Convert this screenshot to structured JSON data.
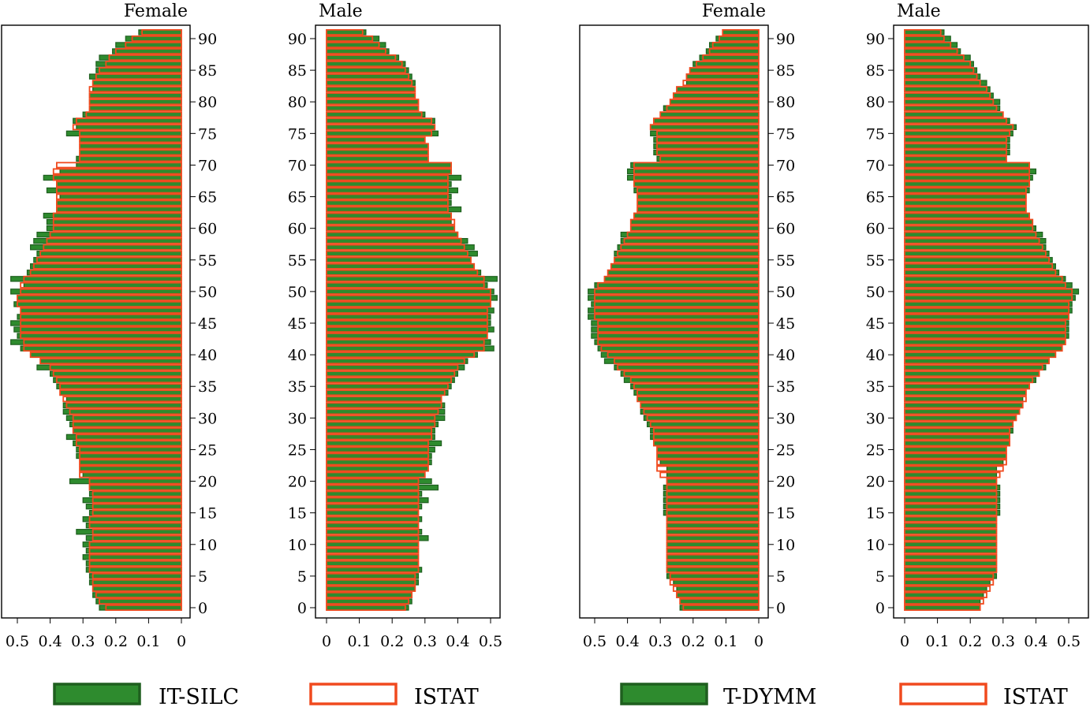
{
  "colors": {
    "survey": "#2e8b2e",
    "survey_edge": "#1f5f1f",
    "istat": "#f04a1e"
  },
  "legend": [
    {
      "label": "IT-SILC",
      "style": "filled"
    },
    {
      "label": "ISTAT",
      "style": "outline"
    },
    {
      "label": "T-DYMM",
      "style": "filled"
    },
    {
      "label": "ISTAT",
      "style": "outline"
    }
  ],
  "chart_data": [
    {
      "type": "bar",
      "orientation": "horizontal",
      "title": "Female",
      "x_direction": "reversed",
      "xlim": [
        0,
        0.55
      ],
      "ylim": [
        0,
        91
      ],
      "x_ticks": [
        0.5,
        0.4,
        0.3,
        0.2,
        0.1,
        0
      ],
      "y_ticks": [
        0,
        5,
        10,
        15,
        20,
        25,
        30,
        35,
        40,
        45,
        50,
        55,
        60,
        65,
        70,
        75,
        80,
        85,
        90
      ],
      "y_axis_side": "right",
      "series": [
        {
          "name": "IT-SILC",
          "style": "filled",
          "values": [
            0.25,
            0.26,
            0.27,
            0.27,
            0.28,
            0.28,
            0.29,
            0.29,
            0.3,
            0.29,
            0.3,
            0.29,
            0.32,
            0.29,
            0.3,
            0.28,
            0.29,
            0.3,
            0.28,
            0.28,
            0.34,
            0.3,
            0.31,
            0.31,
            0.32,
            0.32,
            0.33,
            0.35,
            0.33,
            0.34,
            0.35,
            0.36,
            0.36,
            0.35,
            0.37,
            0.38,
            0.39,
            0.4,
            0.44,
            0.43,
            0.46,
            0.49,
            0.52,
            0.5,
            0.51,
            0.52,
            0.5,
            0.49,
            0.51,
            0.5,
            0.52,
            0.48,
            0.52,
            0.47,
            0.46,
            0.45,
            0.44,
            0.46,
            0.45,
            0.44,
            0.41,
            0.41,
            0.42,
            0.38,
            0.38,
            0.37,
            0.41,
            0.38,
            0.42,
            0.37,
            0.32,
            0.32,
            0.31,
            0.31,
            0.31,
            0.35,
            0.32,
            0.33,
            0.3,
            0.28,
            0.28,
            0.28,
            0.27,
            0.27,
            0.28,
            0.26,
            0.26,
            0.25,
            0.21,
            0.2,
            0.17,
            0.13
          ]
        },
        {
          "name": "ISTAT",
          "style": "outline",
          "values": [
            0.23,
            0.25,
            0.26,
            0.27,
            0.27,
            0.27,
            0.28,
            0.28,
            0.28,
            0.28,
            0.28,
            0.27,
            0.27,
            0.28,
            0.28,
            0.27,
            0.27,
            0.27,
            0.27,
            0.28,
            0.28,
            0.31,
            0.31,
            0.31,
            0.31,
            0.31,
            0.32,
            0.32,
            0.33,
            0.33,
            0.33,
            0.34,
            0.35,
            0.36,
            0.37,
            0.37,
            0.38,
            0.39,
            0.4,
            0.43,
            0.46,
            0.48,
            0.48,
            0.49,
            0.49,
            0.49,
            0.49,
            0.49,
            0.5,
            0.5,
            0.49,
            0.49,
            0.48,
            0.46,
            0.45,
            0.44,
            0.43,
            0.42,
            0.41,
            0.4,
            0.39,
            0.39,
            0.39,
            0.38,
            0.38,
            0.38,
            0.38,
            0.38,
            0.39,
            0.39,
            0.38,
            0.31,
            0.31,
            0.31,
            0.31,
            0.31,
            0.33,
            0.32,
            0.29,
            0.28,
            0.28,
            0.28,
            0.28,
            0.27,
            0.26,
            0.25,
            0.23,
            0.22,
            0.2,
            0.17,
            0.15,
            0.12
          ]
        }
      ]
    },
    {
      "type": "bar",
      "orientation": "horizontal",
      "title": "Male",
      "x_direction": "normal",
      "xlim": [
        0,
        0.55
      ],
      "ylim": [
        0,
        91
      ],
      "x_ticks": [
        0,
        0.1,
        0.2,
        0.3,
        0.4,
        0.5
      ],
      "y_ticks": [
        0,
        5,
        10,
        15,
        20,
        25,
        30,
        35,
        40,
        45,
        50,
        55,
        60,
        65,
        70,
        75,
        80,
        85,
        90
      ],
      "y_axis_side": "left",
      "series": [
        {
          "name": "IT-SILC",
          "style": "filled",
          "values": [
            0.25,
            0.26,
            0.26,
            0.27,
            0.28,
            0.28,
            0.29,
            0.28,
            0.28,
            0.28,
            0.28,
            0.31,
            0.29,
            0.28,
            0.29,
            0.28,
            0.29,
            0.31,
            0.29,
            0.34,
            0.32,
            0.3,
            0.31,
            0.32,
            0.32,
            0.33,
            0.35,
            0.33,
            0.33,
            0.34,
            0.36,
            0.36,
            0.36,
            0.35,
            0.37,
            0.38,
            0.39,
            0.4,
            0.42,
            0.43,
            0.46,
            0.51,
            0.5,
            0.49,
            0.51,
            0.5,
            0.5,
            0.51,
            0.5,
            0.52,
            0.51,
            0.49,
            0.52,
            0.47,
            0.45,
            0.44,
            0.46,
            0.45,
            0.43,
            0.4,
            0.39,
            0.38,
            0.38,
            0.41,
            0.38,
            0.38,
            0.4,
            0.38,
            0.41,
            0.38,
            0.38,
            0.31,
            0.31,
            0.31,
            0.3,
            0.34,
            0.33,
            0.33,
            0.3,
            0.28,
            0.28,
            0.27,
            0.27,
            0.27,
            0.26,
            0.25,
            0.24,
            0.22,
            0.19,
            0.18,
            0.16,
            0.12
          ]
        },
        {
          "name": "ISTAT",
          "style": "outline",
          "values": [
            0.24,
            0.25,
            0.26,
            0.27,
            0.27,
            0.27,
            0.28,
            0.28,
            0.28,
            0.28,
            0.28,
            0.28,
            0.28,
            0.28,
            0.28,
            0.28,
            0.28,
            0.28,
            0.28,
            0.28,
            0.28,
            0.3,
            0.31,
            0.31,
            0.31,
            0.31,
            0.31,
            0.32,
            0.32,
            0.33,
            0.33,
            0.34,
            0.35,
            0.35,
            0.36,
            0.37,
            0.38,
            0.39,
            0.4,
            0.42,
            0.45,
            0.48,
            0.48,
            0.49,
            0.49,
            0.49,
            0.49,
            0.49,
            0.5,
            0.5,
            0.5,
            0.48,
            0.48,
            0.46,
            0.45,
            0.44,
            0.43,
            0.42,
            0.41,
            0.4,
            0.39,
            0.39,
            0.38,
            0.37,
            0.37,
            0.37,
            0.37,
            0.37,
            0.37,
            0.38,
            0.38,
            0.31,
            0.31,
            0.31,
            0.3,
            0.32,
            0.33,
            0.32,
            0.29,
            0.28,
            0.28,
            0.27,
            0.27,
            0.26,
            0.25,
            0.24,
            0.23,
            0.21,
            0.18,
            0.16,
            0.14,
            0.11
          ]
        }
      ]
    },
    {
      "type": "bar",
      "orientation": "horizontal",
      "title": "Female",
      "x_direction": "reversed",
      "xlim": [
        0,
        0.55
      ],
      "ylim": [
        0,
        91
      ],
      "x_ticks": [
        0.5,
        0.4,
        0.3,
        0.2,
        0.1,
        0
      ],
      "y_ticks": [
        0,
        5,
        10,
        15,
        20,
        25,
        30,
        35,
        40,
        45,
        50,
        55,
        60,
        65,
        70,
        75,
        80,
        85,
        90
      ],
      "y_axis_side": "right",
      "series": [
        {
          "name": "T-DYMM",
          "style": "filled",
          "values": [
            0.24,
            0.24,
            0.25,
            0.25,
            0.26,
            0.28,
            0.28,
            0.28,
            0.28,
            0.28,
            0.28,
            0.28,
            0.28,
            0.28,
            0.28,
            0.29,
            0.29,
            0.29,
            0.29,
            0.29,
            0.28,
            0.28,
            0.28,
            0.3,
            0.31,
            0.31,
            0.32,
            0.33,
            0.33,
            0.34,
            0.35,
            0.36,
            0.36,
            0.37,
            0.38,
            0.39,
            0.41,
            0.42,
            0.44,
            0.47,
            0.48,
            0.49,
            0.5,
            0.51,
            0.51,
            0.51,
            0.52,
            0.52,
            0.51,
            0.52,
            0.52,
            0.5,
            0.47,
            0.46,
            0.45,
            0.44,
            0.44,
            0.43,
            0.42,
            0.42,
            0.39,
            0.39,
            0.38,
            0.37,
            0.37,
            0.37,
            0.38,
            0.38,
            0.4,
            0.4,
            0.39,
            0.31,
            0.32,
            0.32,
            0.32,
            0.33,
            0.33,
            0.32,
            0.3,
            0.29,
            0.27,
            0.26,
            0.25,
            0.22,
            0.22,
            0.21,
            0.2,
            0.18,
            0.16,
            0.15,
            0.13,
            0.11
          ]
        },
        {
          "name": "ISTAT",
          "style": "outline",
          "values": [
            0.23,
            0.24,
            0.25,
            0.26,
            0.27,
            0.27,
            0.28,
            0.28,
            0.28,
            0.28,
            0.28,
            0.28,
            0.28,
            0.28,
            0.28,
            0.28,
            0.28,
            0.28,
            0.28,
            0.28,
            0.28,
            0.3,
            0.31,
            0.31,
            0.31,
            0.31,
            0.32,
            0.32,
            0.32,
            0.33,
            0.34,
            0.35,
            0.36,
            0.37,
            0.37,
            0.38,
            0.39,
            0.41,
            0.43,
            0.44,
            0.46,
            0.48,
            0.49,
            0.49,
            0.49,
            0.49,
            0.5,
            0.5,
            0.5,
            0.5,
            0.5,
            0.49,
            0.47,
            0.46,
            0.45,
            0.44,
            0.43,
            0.42,
            0.41,
            0.4,
            0.39,
            0.39,
            0.38,
            0.37,
            0.37,
            0.37,
            0.37,
            0.38,
            0.38,
            0.38,
            0.38,
            0.3,
            0.31,
            0.31,
            0.31,
            0.31,
            0.33,
            0.32,
            0.3,
            0.28,
            0.27,
            0.26,
            0.25,
            0.23,
            0.22,
            0.21,
            0.19,
            0.17,
            0.15,
            0.14,
            0.12,
            0.11
          ]
        }
      ]
    },
    {
      "type": "bar",
      "orientation": "horizontal",
      "title": "Male",
      "x_direction": "normal",
      "xlim": [
        0,
        0.55
      ],
      "ylim": [
        0,
        91
      ],
      "x_ticks": [
        0,
        0.1,
        0.2,
        0.3,
        0.4,
        0.5
      ],
      "y_ticks": [
        0,
        5,
        10,
        15,
        20,
        25,
        30,
        35,
        40,
        45,
        50,
        55,
        60,
        65,
        70,
        75,
        80,
        85,
        90
      ],
      "y_axis_side": "left",
      "series": [
        {
          "name": "T-DYMM",
          "style": "filled",
          "values": [
            0.23,
            0.23,
            0.24,
            0.25,
            0.26,
            0.28,
            0.28,
            0.28,
            0.28,
            0.28,
            0.28,
            0.28,
            0.28,
            0.28,
            0.28,
            0.29,
            0.29,
            0.29,
            0.29,
            0.29,
            0.28,
            0.28,
            0.28,
            0.3,
            0.31,
            0.31,
            0.32,
            0.32,
            0.33,
            0.33,
            0.34,
            0.35,
            0.36,
            0.36,
            0.37,
            0.38,
            0.4,
            0.41,
            0.43,
            0.44,
            0.46,
            0.48,
            0.49,
            0.5,
            0.5,
            0.5,
            0.5,
            0.51,
            0.51,
            0.52,
            0.53,
            0.51,
            0.49,
            0.47,
            0.46,
            0.45,
            0.44,
            0.43,
            0.43,
            0.42,
            0.4,
            0.39,
            0.38,
            0.37,
            0.37,
            0.37,
            0.38,
            0.38,
            0.39,
            0.4,
            0.38,
            0.31,
            0.32,
            0.32,
            0.32,
            0.33,
            0.34,
            0.32,
            0.3,
            0.29,
            0.29,
            0.27,
            0.26,
            0.25,
            0.23,
            0.22,
            0.21,
            0.2,
            0.17,
            0.16,
            0.14,
            0.12
          ]
        },
        {
          "name": "ISTAT",
          "style": "outline",
          "values": [
            0.23,
            0.24,
            0.25,
            0.26,
            0.27,
            0.27,
            0.28,
            0.28,
            0.28,
            0.28,
            0.28,
            0.28,
            0.28,
            0.28,
            0.28,
            0.28,
            0.28,
            0.28,
            0.28,
            0.28,
            0.28,
            0.29,
            0.3,
            0.31,
            0.31,
            0.31,
            0.32,
            0.32,
            0.32,
            0.33,
            0.34,
            0.35,
            0.36,
            0.37,
            0.37,
            0.38,
            0.39,
            0.41,
            0.42,
            0.44,
            0.46,
            0.48,
            0.49,
            0.49,
            0.49,
            0.49,
            0.5,
            0.5,
            0.5,
            0.51,
            0.51,
            0.49,
            0.48,
            0.46,
            0.45,
            0.44,
            0.43,
            0.42,
            0.41,
            0.4,
            0.39,
            0.39,
            0.38,
            0.37,
            0.37,
            0.37,
            0.37,
            0.38,
            0.38,
            0.38,
            0.38,
            0.31,
            0.31,
            0.31,
            0.31,
            0.32,
            0.33,
            0.31,
            0.3,
            0.28,
            0.27,
            0.26,
            0.25,
            0.23,
            0.22,
            0.21,
            0.2,
            0.18,
            0.16,
            0.14,
            0.12,
            0.11
          ]
        }
      ]
    }
  ]
}
